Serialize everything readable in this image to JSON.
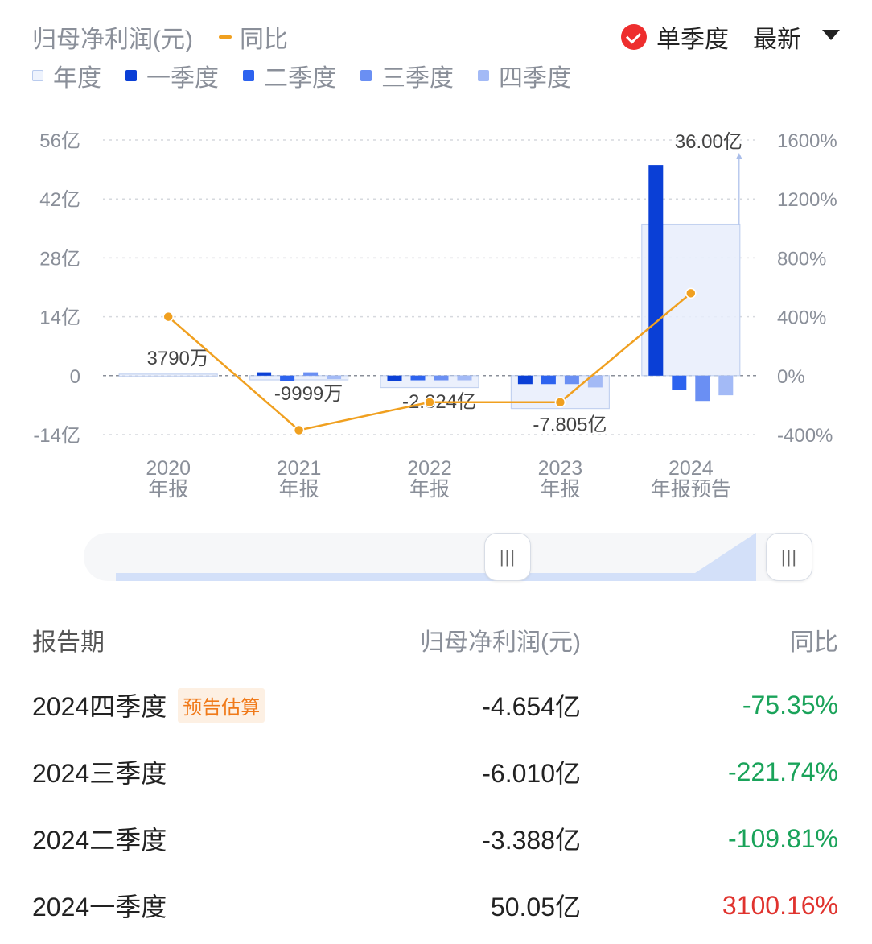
{
  "header": {
    "title": "归母净利润(元)",
    "yoy_label": "同比",
    "single_quarter_label": "单季度",
    "latest_label": "最新"
  },
  "legend": {
    "year": "年度",
    "q1": "一季度",
    "q2": "二季度",
    "q3": "三季度",
    "q4": "四季度"
  },
  "colors": {
    "year_fill": "#e8eefc",
    "year_stroke": "#b9cbee",
    "q1": "#0a3fd6",
    "q2": "#2d63ef",
    "q3": "#6a8ff3",
    "q4": "#a3baf6",
    "yoy": "#f0a020",
    "grid": "#d6d9de",
    "axis_text": "#8a8f99",
    "neg_green": "#1aa35a",
    "pos_red": "#e0332e",
    "check_red": "#ee2e2e"
  },
  "chart_data": {
    "type": "bar",
    "categories": [
      "2020\n年报",
      "2021\n年报",
      "2022\n年报",
      "2023\n年报",
      "2024\n年报预告"
    ],
    "category_lines": [
      [
        "2020",
        "年报"
      ],
      [
        "2021",
        "年报"
      ],
      [
        "2022",
        "年报"
      ],
      [
        "2023",
        "年报"
      ],
      [
        "2024",
        "年报预告"
      ]
    ],
    "y_left": {
      "min": -14,
      "max": 56,
      "ticks": [
        -14,
        0,
        14,
        28,
        42,
        56
      ],
      "tick_labels": [
        "-14亿",
        "0",
        "14亿",
        "28亿",
        "42亿",
        "56亿"
      ]
    },
    "y_right": {
      "min": -400,
      "max": 1600,
      "ticks": [
        -400,
        0,
        400,
        800,
        1200,
        1600
      ],
      "tick_labels": [
        "-400%",
        "0%",
        "400%",
        "800%",
        "1200%",
        "1600%"
      ]
    },
    "annual": {
      "values": [
        0.379,
        -0.9999,
        -2.824,
        -7.805,
        36.0
      ],
      "labels": [
        "3790万",
        "-9999万",
        "-2.824亿",
        "-7.805亿",
        "36.00亿"
      ]
    },
    "series": [
      {
        "name": "一季度",
        "values": [
          0.0,
          0.8,
          -1.2,
          -2.0,
          50.05
        ]
      },
      {
        "name": "二季度",
        "values": [
          0.0,
          -1.2,
          -1.1,
          -2.0,
          -3.388
        ]
      },
      {
        "name": "三季度",
        "values": [
          0.0,
          0.8,
          -1.1,
          -2.0,
          -6.01
        ]
      },
      {
        "name": "四季度",
        "values": [
          0.0,
          -0.8,
          -1.1,
          -2.8,
          -4.654
        ]
      }
    ],
    "yoy": {
      "name": "同比",
      "values": [
        400,
        -370,
        -180,
        -180,
        560
      ]
    },
    "grid": true,
    "legend_position": "top-left"
  },
  "table": {
    "headers": [
      "报告期",
      "归母净利润(元)",
      "同比"
    ],
    "rows": [
      {
        "period": "2024四季度",
        "badge": "预告估算",
        "value": "-4.654亿",
        "yoy": "-75.35%",
        "dir": "neg"
      },
      {
        "period": "2024三季度",
        "badge": "",
        "value": "-6.010亿",
        "yoy": "-221.74%",
        "dir": "neg"
      },
      {
        "period": "2024二季度",
        "badge": "",
        "value": "-3.388亿",
        "yoy": "-109.81%",
        "dir": "neg"
      },
      {
        "period": "2024一季度",
        "badge": "",
        "value": "50.05亿",
        "yoy": "3100.16%",
        "dir": "pos"
      }
    ]
  }
}
